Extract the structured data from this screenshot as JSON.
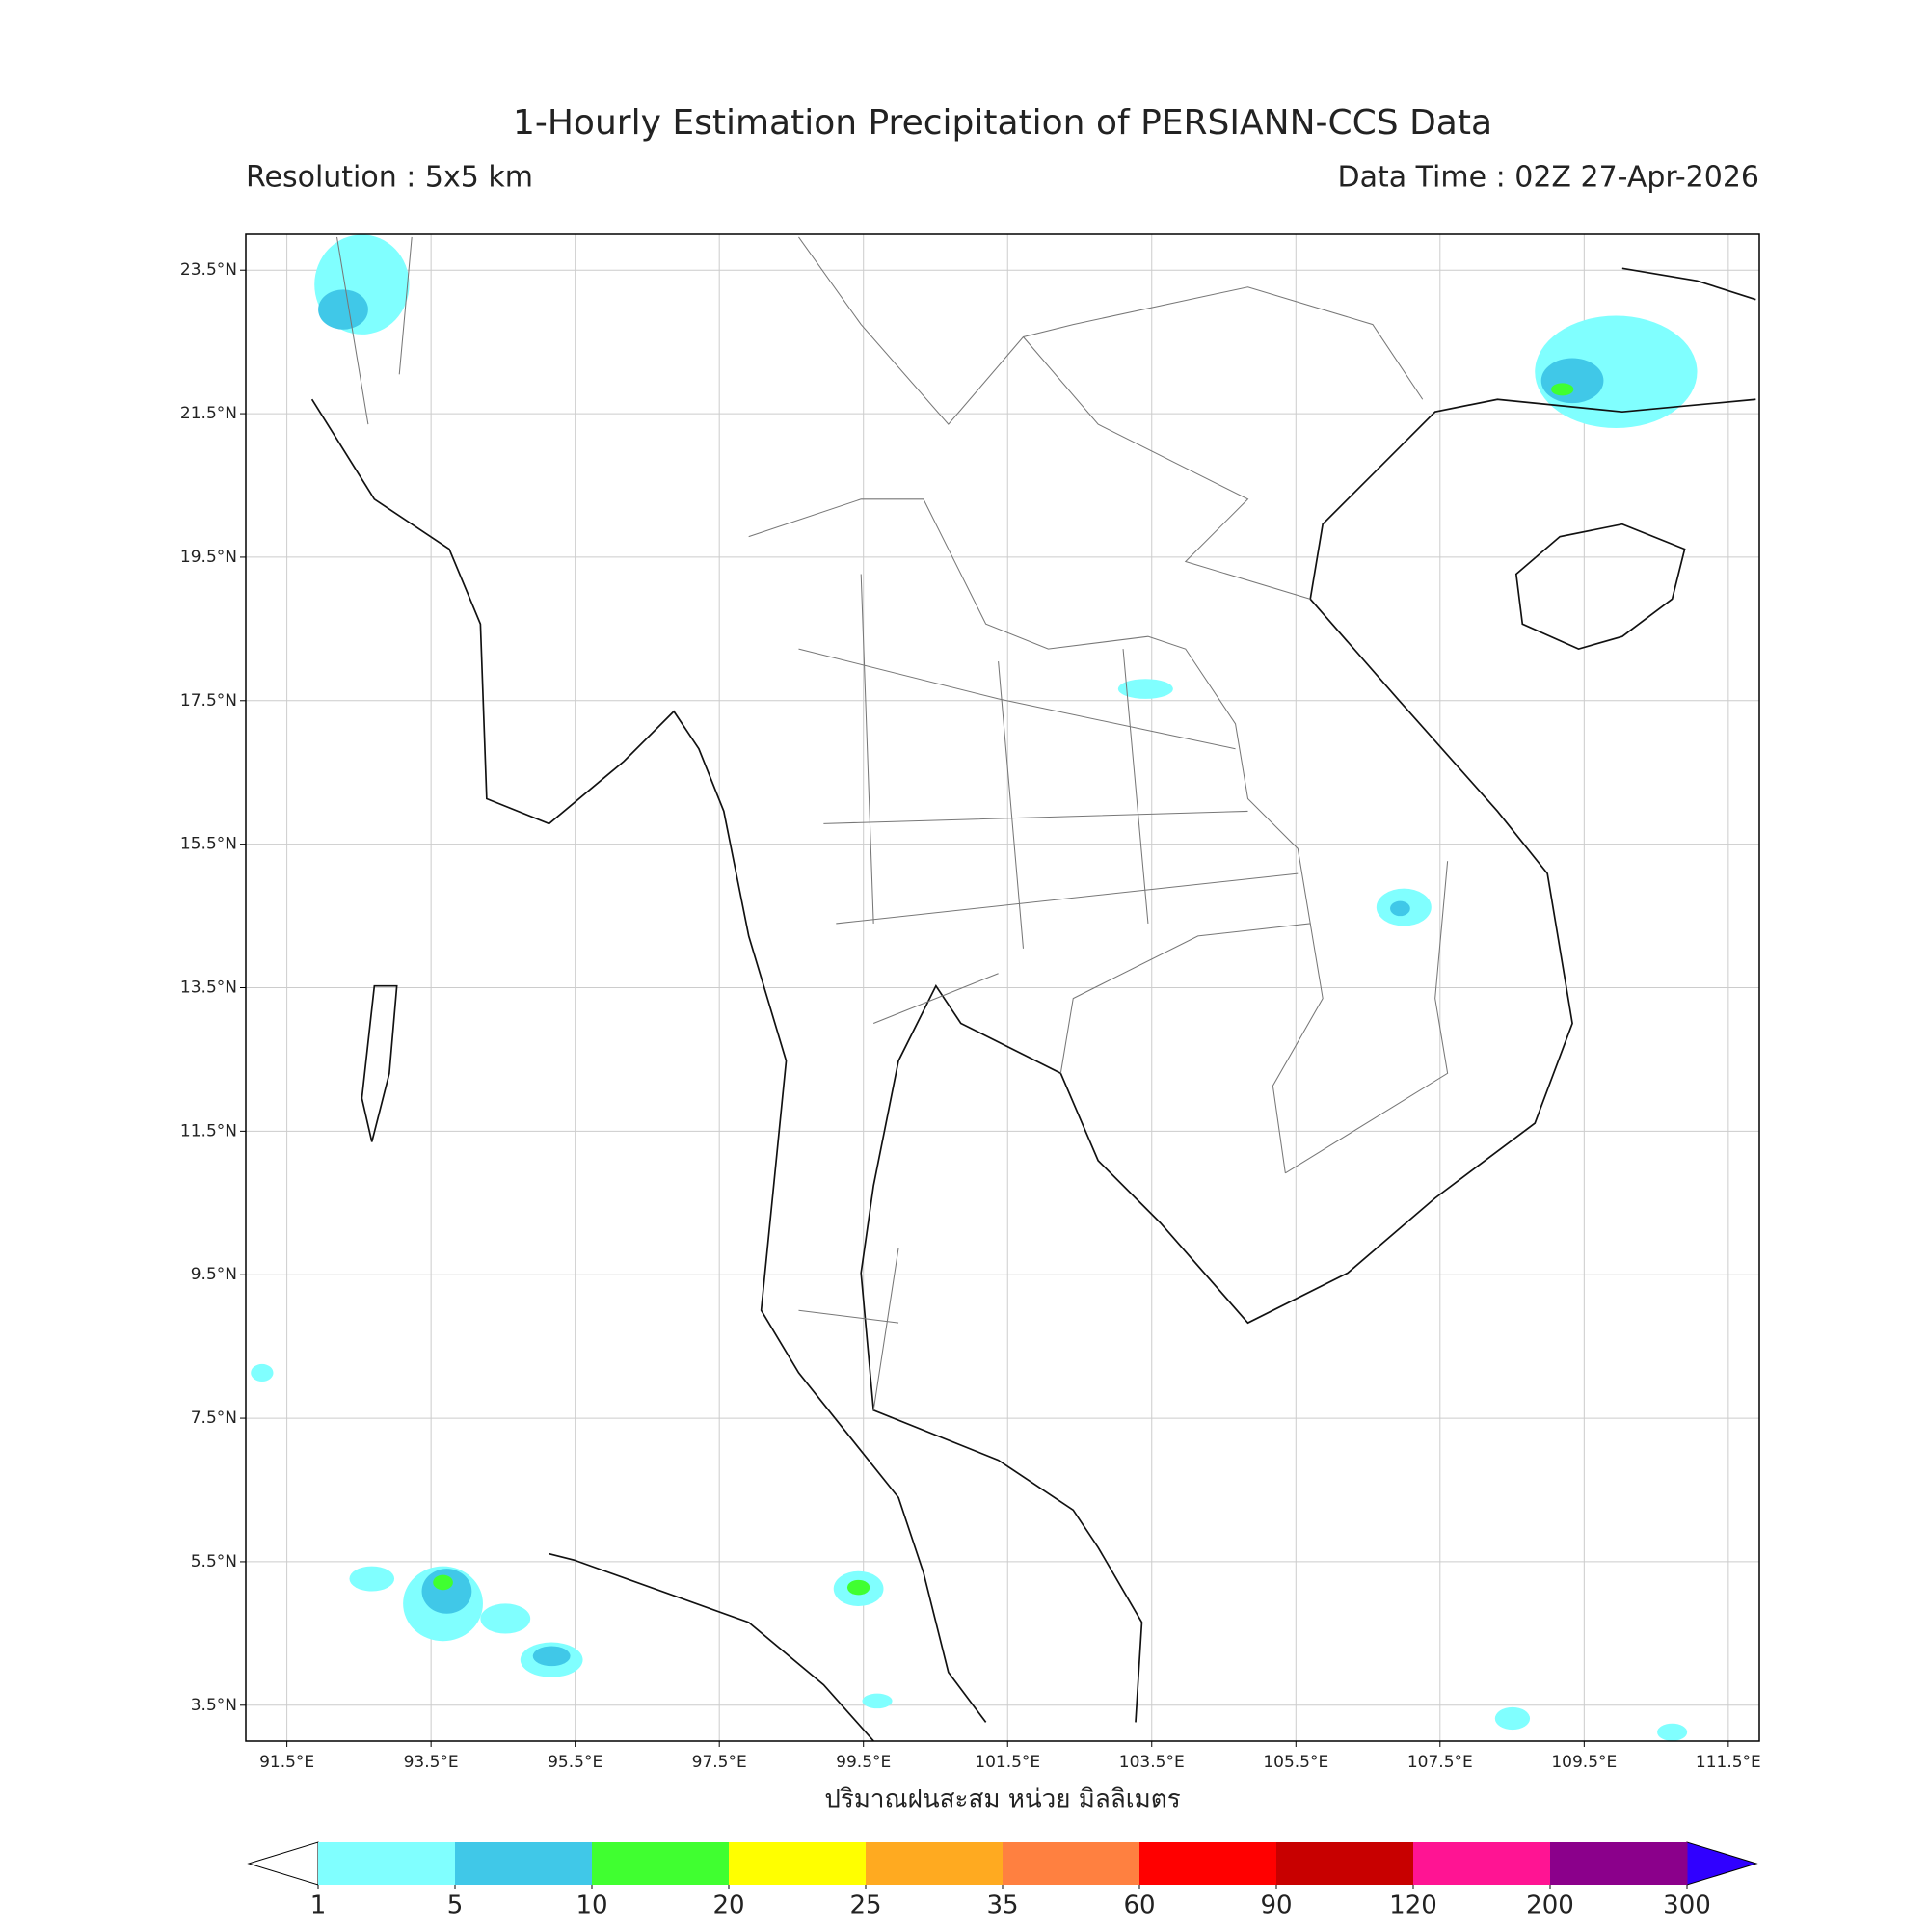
{
  "title": "1-Hourly Estimation Precipitation of PERSIANN-CCS Data",
  "resolution": "Resolution : 5x5 km",
  "data_time": "Data Time : 02Z 27-Apr-2026",
  "map": {
    "lonlim": [
      90.93,
      111.93
    ],
    "latlim": [
      3.0,
      24.0
    ],
    "grid": true,
    "lonticks": [
      {
        "value": 91.5,
        "label": "91.5°E"
      },
      {
        "value": 93.5,
        "label": "93.5°E"
      },
      {
        "value": 95.5,
        "label": "95.5°E"
      },
      {
        "value": 97.5,
        "label": "97.5°E"
      },
      {
        "value": 99.5,
        "label": "99.5°E"
      },
      {
        "value": 101.5,
        "label": "101.5°E"
      },
      {
        "value": 103.5,
        "label": "103.5°E"
      },
      {
        "value": 105.5,
        "label": "105.5°E"
      },
      {
        "value": 107.5,
        "label": "107.5°E"
      },
      {
        "value": 109.5,
        "label": "109.5°E"
      },
      {
        "value": 111.5,
        "label": "111.5°E"
      }
    ],
    "latticks": [
      {
        "value": 23.5,
        "label": "23.5°N"
      },
      {
        "value": 21.5,
        "label": "21.5°N"
      },
      {
        "value": 19.5,
        "label": "19.5°N"
      },
      {
        "value": 17.5,
        "label": "17.5°N"
      },
      {
        "value": 15.5,
        "label": "15.5°N"
      },
      {
        "value": 13.5,
        "label": "13.5°N"
      },
      {
        "value": 11.5,
        "label": "11.5°N"
      },
      {
        "value": 9.5,
        "label": "9.5°N"
      },
      {
        "value": 7.5,
        "label": "7.5°N"
      },
      {
        "value": 5.5,
        "label": "5.5°N"
      },
      {
        "value": 3.5,
        "label": "3.5°N"
      }
    ]
  },
  "colorbar": {
    "label": "ปริมาณฝนสะสม หน่วย มิลลิเมตร",
    "levels": [
      1,
      5,
      10,
      20,
      25,
      35,
      60,
      90,
      120,
      200,
      300
    ],
    "colors": [
      "#80ffff",
      "#40c8e8",
      "#40ff30",
      "#ffff00",
      "#ffaa20",
      "#ff8040",
      "#ff0000",
      "#c80000",
      "#ff1493",
      "#8b008b"
    ],
    "under_color": "#ffffff",
    "over_color": "#3000ff"
  }
}
